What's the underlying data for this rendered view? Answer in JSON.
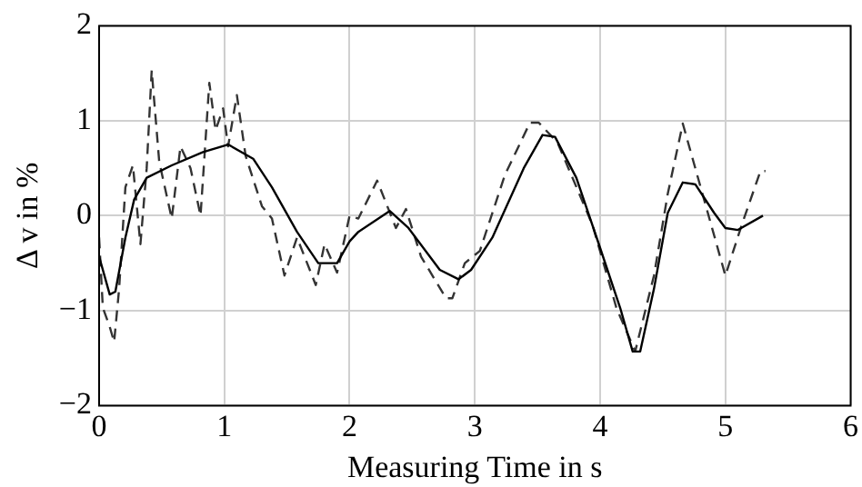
{
  "chart_data": {
    "type": "line",
    "xlabel": "Measuring Time in s",
    "ylabel": "Δ v in %",
    "xlim": [
      0,
      6
    ],
    "xticks": [
      0,
      1,
      2,
      3,
      4,
      5,
      6
    ],
    "ylim": [
      -2,
      2
    ],
    "yticks": [
      -2,
      -1,
      0,
      1,
      2
    ],
    "grid": true,
    "legend": false,
    "marker": "none",
    "series": [
      {
        "color": "#000000",
        "line_style": "solid",
        "x": [
          0,
          0.085,
          0.13,
          0.21,
          0.28,
          0.38,
          0.58,
          0.83,
          1.03,
          1.23,
          1.38,
          1.58,
          1.75,
          1.9,
          2.0,
          2.07,
          2.32,
          2.47,
          2.72,
          2.87,
          2.97,
          3.14,
          3.39,
          3.54,
          3.64,
          3.81,
          3.99,
          4.16,
          4.26,
          4.32,
          4.43,
          4.54,
          4.66,
          4.76,
          4.91,
          5.0,
          5.1,
          5.3
        ],
        "values": [
          -0.43,
          -0.83,
          -0.8,
          -0.23,
          0.17,
          0.4,
          0.53,
          0.67,
          0.75,
          0.6,
          0.3,
          -0.17,
          -0.5,
          -0.5,
          -0.27,
          -0.17,
          0.05,
          -0.13,
          -0.57,
          -0.67,
          -0.57,
          -0.23,
          0.5,
          0.85,
          0.83,
          0.4,
          -0.3,
          -0.97,
          -1.43,
          -1.43,
          -0.77,
          0.03,
          0.35,
          0.33,
          0.03,
          -0.13,
          -0.15,
          0
        ]
      },
      {
        "color": "#333333",
        "line_style": "dashed",
        "x": [
          0,
          0.03,
          0.085,
          0.12,
          0.16,
          0.21,
          0.27,
          0.33,
          0.38,
          0.42,
          0.48,
          0.58,
          0.65,
          0.73,
          0.81,
          0.88,
          0.93,
          0.99,
          1.03,
          1.1,
          1.17,
          1.3,
          1.38,
          1.48,
          1.58,
          1.73,
          1.8,
          1.9,
          2.0,
          2.07,
          2.22,
          2.37,
          2.45,
          2.57,
          2.77,
          2.82,
          2.92,
          3.04,
          3.24,
          3.44,
          3.51,
          3.66,
          3.94,
          4.13,
          4.28,
          4.43,
          4.54,
          4.66,
          4.83,
          5.0,
          5.13,
          5.28,
          5.32
        ],
        "values": [
          -0.23,
          -0.97,
          -1.17,
          -1.33,
          -0.77,
          0.3,
          0.53,
          -0.3,
          0.5,
          1.53,
          0.57,
          -0.03,
          0.73,
          0.5,
          0,
          1.4,
          0.9,
          1.13,
          0.73,
          1.27,
          0.63,
          0.1,
          -0.03,
          -0.63,
          -0.23,
          -0.73,
          -0.3,
          -0.6,
          0,
          -0.03,
          0.37,
          -0.13,
          0.07,
          -0.43,
          -0.87,
          -0.87,
          -0.5,
          -0.37,
          0.43,
          0.98,
          0.98,
          0.77,
          -0.1,
          -0.97,
          -1.43,
          -0.63,
          0.23,
          0.97,
          0.17,
          -0.63,
          -0.1,
          0.47,
          0.47
        ]
      }
    ]
  }
}
